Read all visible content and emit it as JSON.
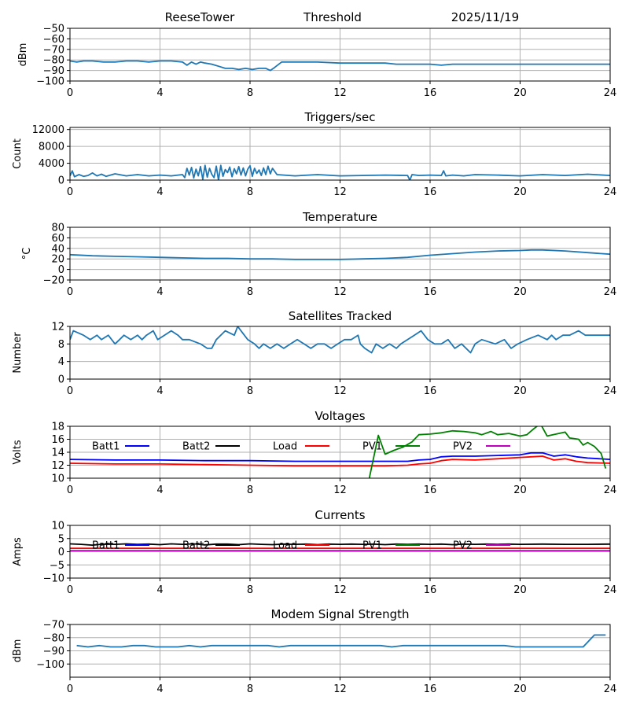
{
  "header": {
    "station": "ReeseTower",
    "panel": "Threshold",
    "date": "2025/11/19"
  },
  "colors": {
    "default_line": "#1f77b4",
    "grid": "#b0b0b0",
    "Batt1": "#0000ff",
    "Batt2": "#000000",
    "Load": "#ff0000",
    "PV1": "#008000",
    "PV2": "#bf00bf"
  },
  "legend_labels": [
    "Batt1",
    "Batt2",
    "Load",
    "PV1",
    "PV2"
  ],
  "chart_data": [
    {
      "type": "line",
      "title": "",
      "ylabel": "dBm",
      "xlim": [
        0,
        24
      ],
      "ylim": [
        -100,
        -50
      ],
      "yticks": [
        -100,
        -90,
        -80,
        -70,
        -60,
        -50
      ],
      "xticks": [
        0,
        4,
        8,
        12,
        16,
        20,
        24
      ],
      "grid": true,
      "series": [
        {
          "name": "Threshold",
          "x": [
            0,
            0.3,
            0.6,
            1,
            1.5,
            2,
            2.5,
            3,
            3.5,
            4,
            4.5,
            5,
            5.2,
            5.4,
            5.6,
            5.8,
            6,
            6.3,
            6.6,
            6.9,
            7.2,
            7.5,
            7.8,
            8.1,
            8.4,
            8.7,
            8.9,
            9.1,
            9.4,
            9.7,
            10,
            11,
            12,
            13,
            14,
            14.5,
            15,
            15.5,
            16,
            16.5,
            17,
            18,
            19,
            20,
            21,
            22,
            23,
            24
          ],
          "y": [
            -81,
            -82,
            -81,
            -81,
            -82,
            -82,
            -81,
            -81,
            -82,
            -81,
            -81,
            -82,
            -85,
            -82,
            -84,
            -82,
            -83,
            -84,
            -86,
            -88,
            -88,
            -89,
            -88,
            -89,
            -88,
            -88,
            -90,
            -87,
            -82,
            -82,
            -82,
            -82,
            -83,
            -83,
            -83,
            -84,
            -84,
            -84,
            -84,
            -85,
            -84,
            -84,
            -84,
            -84,
            -84,
            -84,
            -84,
            -84
          ]
        }
      ]
    },
    {
      "type": "line",
      "title": "Triggers/sec",
      "ylabel": "Count",
      "xlim": [
        0,
        24
      ],
      "ylim": [
        0,
        12500
      ],
      "yticks": [
        0,
        4000,
        8000,
        12000
      ],
      "xticks": [
        0,
        4,
        8,
        12,
        16,
        20,
        24
      ],
      "grid": true,
      "series": [
        {
          "name": "Triggers",
          "x": [
            0,
            0.1,
            0.2,
            0.4,
            0.6,
            0.8,
            1,
            1.2,
            1.4,
            1.6,
            1.8,
            2,
            2.5,
            3,
            3.5,
            4,
            4.5,
            5,
            5.1,
            5.2,
            5.3,
            5.4,
            5.5,
            5.6,
            5.7,
            5.8,
            5.9,
            6,
            6.1,
            6.2,
            6.3,
            6.4,
            6.5,
            6.6,
            6.7,
            6.8,
            6.9,
            7,
            7.1,
            7.2,
            7.3,
            7.4,
            7.5,
            7.6,
            7.7,
            7.8,
            7.9,
            8,
            8.1,
            8.2,
            8.3,
            8.4,
            8.5,
            8.6,
            8.7,
            8.8,
            8.9,
            9,
            9.2,
            9.5,
            10,
            11,
            12,
            13,
            14,
            15,
            15.1,
            15.2,
            15.5,
            16,
            16.5,
            16.6,
            16.7,
            17,
            17.5,
            18,
            19,
            20,
            21,
            22,
            23,
            24
          ],
          "y": [
            1000,
            2200,
            800,
            1300,
            900,
            1100,
            1700,
            1000,
            1400,
            900,
            1200,
            1500,
            1000,
            1300,
            1000,
            1200,
            1000,
            1300,
            600,
            2800,
            1200,
            3000,
            500,
            2600,
            1000,
            3200,
            200,
            3500,
            700,
            2800,
            1400,
            600,
            3300,
            0,
            3500,
            900,
            2500,
            1800,
            3100,
            800,
            2700,
            1500,
            3200,
            1200,
            2900,
            1000,
            2600,
            3400,
            900,
            2800,
            1600,
            2400,
            1100,
            2900,
            1300,
            3300,
            1500,
            2800,
            1300,
            1200,
            1000,
            1300,
            1000,
            1100,
            1200,
            1100,
            0,
            1300,
            1100,
            1200,
            1100,
            2200,
            1000,
            1200,
            1000,
            1300,
            1200,
            1000,
            1300,
            1100,
            1400,
            1100
          ]
        }
      ]
    },
    {
      "type": "line",
      "title": "Temperature",
      "ylabel": "°C",
      "xlim": [
        0,
        24
      ],
      "ylim": [
        -20,
        80
      ],
      "yticks": [
        -20,
        0,
        20,
        40,
        60,
        80
      ],
      "xticks": [
        0,
        4,
        8,
        12,
        16,
        20,
        24
      ],
      "grid": true,
      "series": [
        {
          "name": "Temperature",
          "x": [
            0,
            1,
            2,
            3,
            4,
            5,
            6,
            7,
            8,
            9,
            10,
            11,
            12,
            13,
            14,
            15,
            16,
            17,
            18,
            19,
            20,
            20.5,
            21,
            22,
            23,
            24
          ],
          "y": [
            28,
            26,
            25,
            24,
            23,
            22,
            21,
            21,
            20,
            20,
            19,
            19,
            19,
            20,
            21,
            23,
            27,
            30,
            33,
            35,
            36,
            37,
            37,
            35,
            32,
            29
          ]
        }
      ]
    },
    {
      "type": "line",
      "title": "Satellites Tracked",
      "ylabel": "Number",
      "xlim": [
        0,
        24
      ],
      "ylim": [
        0,
        12
      ],
      "yticks": [
        0,
        4,
        8,
        12
      ],
      "xticks": [
        0,
        4,
        8,
        12,
        16,
        20,
        24
      ],
      "grid": true,
      "series": [
        {
          "name": "Satellites",
          "x": [
            0,
            0.15,
            0.6,
            0.9,
            1.2,
            1.4,
            1.7,
            2.0,
            2.2,
            2.4,
            2.7,
            3.0,
            3.2,
            3.4,
            3.7,
            3.9,
            4.2,
            4.5,
            4.8,
            5.0,
            5.3,
            5.8,
            6.1,
            6.3,
            6.5,
            6.9,
            7.3,
            7.45,
            7.6,
            7.9,
            8.2,
            8.4,
            8.6,
            8.9,
            9.2,
            9.5,
            9.8,
            10.1,
            10.4,
            10.7,
            11.0,
            11.3,
            11.6,
            11.9,
            12.2,
            12.5,
            12.8,
            12.9,
            13.1,
            13.4,
            13.6,
            13.9,
            14.2,
            14.5,
            14.7,
            15.0,
            15.3,
            15.6,
            15.9,
            16.2,
            16.5,
            16.8,
            17.1,
            17.4,
            17.8,
            18.0,
            18.3,
            18.9,
            19.3,
            19.6,
            19.9,
            20.3,
            20.8,
            21.2,
            21.4,
            21.6,
            21.9,
            22.2,
            22.6,
            22.9,
            23.3,
            23.6,
            24
          ],
          "y": [
            9,
            11,
            10,
            9,
            10,
            9,
            10,
            8,
            9,
            10,
            9,
            10,
            9,
            10,
            11,
            9,
            10,
            11,
            10,
            9,
            9,
            8,
            7,
            7,
            9,
            11,
            10,
            12,
            11,
            9,
            8,
            7,
            8,
            7,
            8,
            7,
            8,
            9,
            8,
            7,
            8,
            8,
            7,
            8,
            9,
            9,
            10,
            8,
            7,
            6,
            8,
            7,
            8,
            7,
            8,
            9,
            10,
            11,
            9,
            8,
            8,
            9,
            7,
            8,
            6,
            8,
            9,
            8,
            9,
            7,
            8,
            9,
            10,
            9,
            10,
            9,
            10,
            10,
            11,
            10,
            10,
            10,
            10
          ]
        }
      ]
    },
    {
      "type": "line",
      "title": "Voltages",
      "ylabel": "Volts",
      "xlim": [
        0,
        24
      ],
      "ylim": [
        10,
        18
      ],
      "yticks": [
        10,
        12,
        14,
        16,
        18
      ],
      "xticks": [
        0,
        4,
        8,
        12,
        16,
        20,
        24
      ],
      "grid": true,
      "legend": true,
      "series": [
        {
          "name": "Batt1",
          "x": [
            0,
            2,
            4,
            6,
            8,
            10,
            12,
            14,
            15,
            15.5,
            16,
            16.5,
            17,
            18,
            19,
            20,
            20.5,
            21,
            21.5,
            22,
            22.5,
            23,
            24
          ],
          "y": [
            12.9,
            12.8,
            12.8,
            12.7,
            12.7,
            12.6,
            12.6,
            12.6,
            12.6,
            12.8,
            12.9,
            13.3,
            13.4,
            13.4,
            13.5,
            13.6,
            13.9,
            13.9,
            13.4,
            13.6,
            13.3,
            13.1,
            12.9
          ]
        },
        {
          "name": "Batt2",
          "x": [],
          "y": []
        },
        {
          "name": "Load",
          "x": [
            0,
            2,
            4,
            6,
            8,
            10,
            12,
            14,
            15,
            15.5,
            16,
            16.5,
            17,
            18,
            19,
            20,
            20.5,
            21,
            21.5,
            22,
            22.5,
            23,
            24
          ],
          "y": [
            12.3,
            12.2,
            12.2,
            12.1,
            12.0,
            11.9,
            11.9,
            11.9,
            12.0,
            12.2,
            12.3,
            12.7,
            12.9,
            12.8,
            13.0,
            13.2,
            13.3,
            13.4,
            12.8,
            13.0,
            12.6,
            12.4,
            12.3
          ]
        },
        {
          "name": "PV1",
          "x": [
            13.3,
            13.7,
            14.0,
            14.4,
            14.8,
            15.2,
            15.5,
            16.0,
            16.5,
            17.0,
            17.5,
            18.0,
            18.3,
            18.7,
            19.0,
            19.5,
            20.0,
            20.3,
            20.6,
            20.9,
            21.2,
            21.6,
            22.0,
            22.2,
            22.6,
            22.8,
            23.0,
            23.3,
            23.6,
            23.8
          ],
          "y": [
            10.0,
            16.6,
            13.7,
            14.3,
            14.8,
            15.6,
            16.7,
            16.8,
            17.0,
            17.3,
            17.2,
            17.0,
            16.7,
            17.2,
            16.7,
            16.9,
            16.5,
            16.7,
            17.6,
            18.4,
            16.5,
            16.8,
            17.1,
            16.2,
            16.0,
            15.1,
            15.5,
            14.9,
            13.8,
            11.5
          ]
        },
        {
          "name": "PV2",
          "x": [],
          "y": []
        }
      ]
    },
    {
      "type": "line",
      "title": "Currents",
      "ylabel": "Amps",
      "xlim": [
        0,
        24
      ],
      "ylim": [
        -10,
        10
      ],
      "yticks": [
        -10,
        -5,
        0,
        5,
        10
      ],
      "xticks": [
        0,
        4,
        8,
        12,
        16,
        20,
        24
      ],
      "grid": true,
      "legend": true,
      "series": [
        {
          "name": "Batt1",
          "x": [],
          "y": []
        },
        {
          "name": "Batt2",
          "x": [
            0,
            0.5,
            1,
            1.5,
            2,
            2.5,
            3,
            3.5,
            4,
            4.5,
            5,
            5.5,
            6,
            6.5,
            7,
            7.5,
            8,
            8.5,
            9,
            9.5,
            10,
            10.5,
            11,
            11.5,
            12,
            12.5,
            13,
            13.5,
            14,
            14.5,
            15,
            15.5,
            16,
            16.5,
            17,
            17.5,
            18,
            18.5,
            19,
            19.5,
            20,
            21,
            22,
            23,
            24
          ],
          "y": [
            3.0,
            2.8,
            2.5,
            2.9,
            2.8,
            3.0,
            2.8,
            2.9,
            2.7,
            3.0,
            2.8,
            3.0,
            2.6,
            2.9,
            2.9,
            2.7,
            3.0,
            2.8,
            2.7,
            2.9,
            2.8,
            2.9,
            2.7,
            2.9,
            2.8,
            2.9,
            2.8,
            2.9,
            2.7,
            2.9,
            2.8,
            2.9,
            2.8,
            2.9,
            2.7,
            2.9,
            2.8,
            2.9,
            2.8,
            2.9,
            2.8,
            2.9,
            2.8,
            2.8,
            2.9
          ]
        },
        {
          "name": "Load",
          "x": [
            0,
            24
          ],
          "y": [
            1.3,
            1.3
          ]
        },
        {
          "name": "PV1",
          "x": [],
          "y": []
        },
        {
          "name": "PV2",
          "x": [
            0,
            24
          ],
          "y": [
            0.4,
            0.4
          ]
        }
      ]
    },
    {
      "type": "line",
      "title": "Modem Signal Strength",
      "ylabel": "dBm",
      "xlim": [
        0,
        24
      ],
      "ylim": [
        -110,
        -70
      ],
      "yticks": [
        -100,
        -90,
        -80,
        -70
      ],
      "xticks": [
        0,
        4,
        8,
        12,
        16,
        20,
        24
      ],
      "grid": true,
      "series": [
        {
          "name": "Modem",
          "x": [
            0.3,
            0.8,
            1.3,
            1.8,
            2.3,
            2.8,
            3.3,
            3.8,
            4.3,
            4.8,
            5.3,
            5.8,
            6.3,
            6.8,
            7.3,
            7.8,
            8.3,
            8.8,
            9.3,
            9.8,
            10.3,
            10.8,
            11.3,
            11.8,
            12.3,
            12.8,
            13.3,
            13.8,
            14.3,
            14.8,
            15.3,
            15.8,
            16.3,
            16.8,
            17.3,
            17.8,
            18.3,
            18.8,
            19.3,
            19.8,
            20.3,
            20.8,
            21.3,
            21.8,
            22.3,
            22.8,
            23.3,
            23.8
          ],
          "y": [
            -86,
            -87,
            -86,
            -87,
            -87,
            -86,
            -86,
            -87,
            -87,
            -87,
            -86,
            -87,
            -86,
            -86,
            -86,
            -86,
            -86,
            -86,
            -87,
            -86,
            -86,
            -86,
            -86,
            -86,
            -86,
            -86,
            -86,
            -86,
            -87,
            -86,
            -86,
            -86,
            -86,
            -86,
            -86,
            -86,
            -86,
            -86,
            -86,
            -87,
            -87,
            -87,
            -87,
            -87,
            -87,
            -87,
            -78,
            -78
          ]
        }
      ]
    }
  ]
}
